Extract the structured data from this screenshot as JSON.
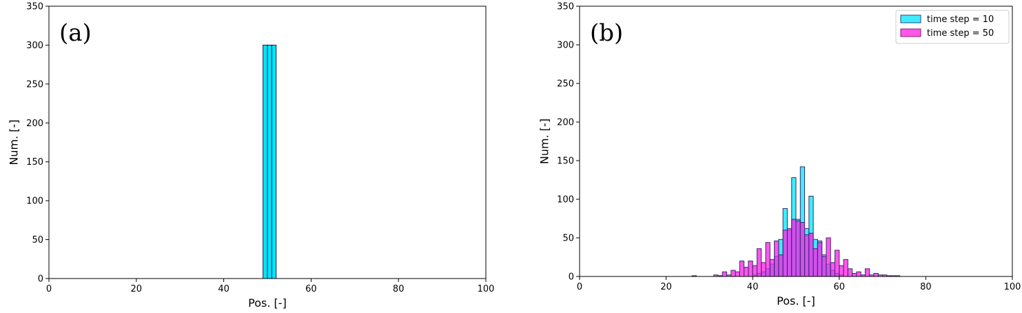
{
  "chart_data": [
    {
      "type": "bar",
      "panel_label": "(a)",
      "xlabel": "Pos. [-]",
      "ylabel": "Num. [-]",
      "xlim": [
        0,
        100
      ],
      "ylim": [
        0,
        350
      ],
      "xticks": [
        0,
        20,
        40,
        60,
        80,
        100
      ],
      "yticks": [
        0,
        50,
        100,
        150,
        200,
        250,
        300,
        350
      ],
      "grid": false,
      "bin_width": 1,
      "series": [
        {
          "color": "#00e5ff",
          "bins": [
            [
              49,
              300
            ],
            [
              50,
              300
            ],
            [
              51,
              300
            ]
          ]
        }
      ]
    },
    {
      "type": "bar",
      "panel_label": "(b)",
      "xlabel": "Pos. [-]",
      "ylabel": "Num. [-]",
      "xlim": [
        0,
        100
      ],
      "ylim": [
        0,
        350
      ],
      "xticks": [
        0,
        20,
        40,
        60,
        80,
        100
      ],
      "yticks": [
        0,
        50,
        100,
        150,
        200,
        250,
        300,
        350
      ],
      "grid": false,
      "legend_position": "top-right",
      "bin_width": 1,
      "series": [
        {
          "name": "time step = 10",
          "color": "#00e5ff",
          "bins": [
            [
              40,
              2
            ],
            [
              41,
              4
            ],
            [
              42,
              6
            ],
            [
              43,
              10
            ],
            [
              44,
              16
            ],
            [
              45,
              26
            ],
            [
              46,
              48
            ],
            [
              47,
              88
            ],
            [
              48,
              60
            ],
            [
              49,
              128
            ],
            [
              50,
              74
            ],
            [
              51,
              142
            ],
            [
              52,
              62
            ],
            [
              53,
              104
            ],
            [
              54,
              48
            ],
            [
              55,
              46
            ],
            [
              56,
              28
            ],
            [
              57,
              16
            ],
            [
              58,
              8
            ],
            [
              59,
              4
            ],
            [
              60,
              2
            ]
          ]
        },
        {
          "name": "time step = 50",
          "color": "#ff1ee6",
          "bins": [
            [
              26,
              1
            ],
            [
              31,
              2
            ],
            [
              32,
              1
            ],
            [
              33,
              6
            ],
            [
              34,
              2
            ],
            [
              35,
              8
            ],
            [
              36,
              6
            ],
            [
              37,
              20
            ],
            [
              38,
              12
            ],
            [
              39,
              20
            ],
            [
              40,
              14
            ],
            [
              41,
              36
            ],
            [
              42,
              18
            ],
            [
              43,
              44
            ],
            [
              44,
              22
            ],
            [
              45,
              46
            ],
            [
              46,
              28
            ],
            [
              47,
              60
            ],
            [
              48,
              62
            ],
            [
              49,
              74
            ],
            [
              50,
              72
            ],
            [
              51,
              70
            ],
            [
              52,
              54
            ],
            [
              53,
              56
            ],
            [
              54,
              36
            ],
            [
              55,
              44
            ],
            [
              56,
              26
            ],
            [
              57,
              50
            ],
            [
              58,
              18
            ],
            [
              59,
              34
            ],
            [
              60,
              14
            ],
            [
              61,
              22
            ],
            [
              62,
              10
            ],
            [
              63,
              4
            ],
            [
              64,
              6
            ],
            [
              65,
              2
            ],
            [
              66,
              10
            ],
            [
              67,
              2
            ],
            [
              68,
              4
            ],
            [
              69,
              2
            ],
            [
              70,
              2
            ],
            [
              71,
              1
            ],
            [
              72,
              1
            ],
            [
              73,
              1
            ]
          ]
        }
      ]
    }
  ]
}
